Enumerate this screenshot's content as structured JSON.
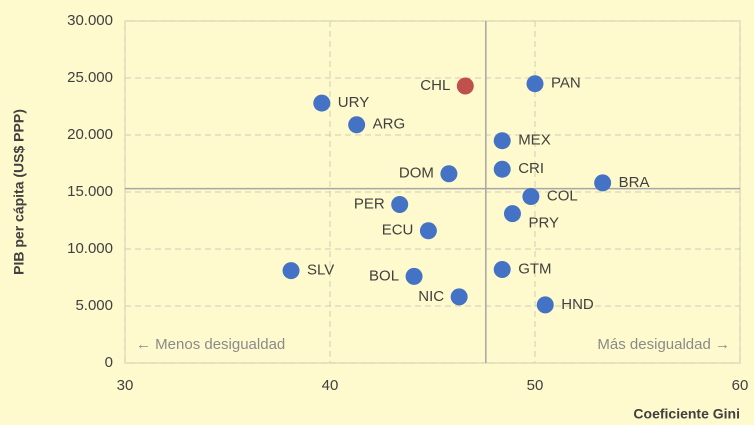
{
  "chart_data": {
    "type": "scatter",
    "x_label": "Coeficiente Gini",
    "y_label": "PIB per cápita (US$ PPP)",
    "labels": [
      "URY",
      "CHL",
      "PAN",
      "ARG",
      "MEX",
      "CRI",
      "DOM",
      "BRA",
      "COL",
      "PER",
      "PRY",
      "ECU",
      "SLV",
      "GTM",
      "BOL",
      "NIC",
      "HND"
    ],
    "x": [
      39.6,
      46.6,
      50.0,
      41.3,
      48.4,
      48.4,
      45.8,
      53.3,
      49.8,
      43.4,
      48.9,
      44.8,
      38.1,
      48.4,
      44.1,
      46.3,
      50.5
    ],
    "y": [
      22800,
      24300,
      24500,
      20900,
      19500,
      17000,
      16600,
      15800,
      14600,
      13900,
      13100,
      11600,
      8100,
      8200,
      7600,
      5800,
      5100
    ],
    "point_colors": [
      "#4472c4",
      "#c0504d",
      "#4472c4",
      "#4472c4",
      "#4472c4",
      "#4472c4",
      "#4472c4",
      "#4472c4",
      "#4472c4",
      "#4472c4",
      "#4472c4",
      "#4472c4",
      "#4472c4",
      "#4472c4",
      "#4472c4",
      "#4472c4",
      "#4472c4"
    ],
    "xlim": [
      30,
      60
    ],
    "xticks": [
      30,
      40,
      50,
      60
    ],
    "ylim": [
      0,
      30000
    ],
    "yticks": [
      0,
      {
        "value": 5000,
        "label": "5.000"
      },
      {
        "value": 10000,
        "label": "10.000"
      },
      {
        "value": 15000,
        "label": "15.000"
      },
      {
        "value": 20000,
        "label": "20.000"
      },
      {
        "value": 25000,
        "label": "25.000"
      },
      {
        "value": 30000,
        "label": "30.000"
      }
    ],
    "grid": true,
    "x_reference": 47.6,
    "y_reference": 15300,
    "annotations": [
      "← Menos desigualdad",
      "Más desigualdad →"
    ]
  }
}
